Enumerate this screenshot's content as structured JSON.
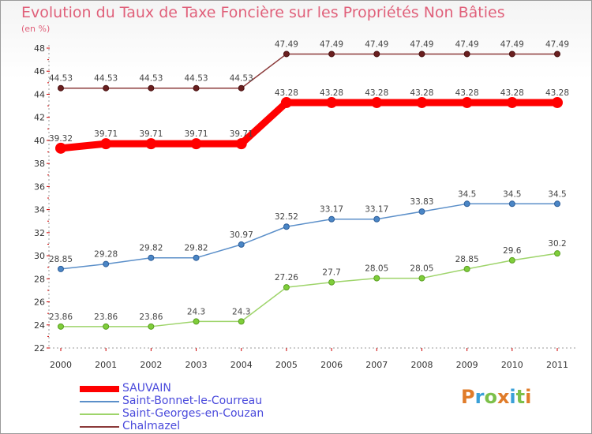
{
  "chart_data": {
    "type": "line",
    "title": "Evolution du Taux de Taxe Foncière sur les Propriétés Non Bâties",
    "subtitle": "(en %)",
    "categories": [
      "2000",
      "2001",
      "2002",
      "2003",
      "2004",
      "2005",
      "2006",
      "2007",
      "2008",
      "2009",
      "2010",
      "2011"
    ],
    "ylim": [
      22,
      48
    ],
    "yticks": [
      22,
      24,
      26,
      28,
      30,
      32,
      34,
      36,
      38,
      40,
      42,
      44,
      46,
      48
    ],
    "grid": false,
    "legend_position": "bottom-left",
    "series": [
      {
        "name": "SAUVAIN",
        "color": "#ff0000",
        "values": [
          39.32,
          39.71,
          39.71,
          39.71,
          39.71,
          43.28,
          43.28,
          43.28,
          43.28,
          43.28,
          43.28,
          43.28
        ],
        "labels": [
          "39.32",
          "39.71",
          "39.71",
          "39.71",
          "39.71",
          "43.28",
          "43.28",
          "43.28",
          "43.28",
          "43.28",
          "43.28",
          "43.28"
        ]
      },
      {
        "name": "Saint-Bonnet-le-Courreau",
        "color": "#5b8fc9",
        "values": [
          28.85,
          29.28,
          29.82,
          29.82,
          30.97,
          32.52,
          33.17,
          33.17,
          33.83,
          34.5,
          34.5,
          34.5
        ],
        "labels": [
          "28.85",
          "29.28",
          "29.82",
          "29.82",
          "30.97",
          "32.52",
          "33.17",
          "33.17",
          "33.83",
          "34.5",
          "34.5",
          "34.5"
        ]
      },
      {
        "name": "Saint-Georges-en-Couzan",
        "color": "#9ed46a",
        "values": [
          23.86,
          23.86,
          23.86,
          24.3,
          24.3,
          27.26,
          27.7,
          28.05,
          28.05,
          28.85,
          29.6,
          30.2
        ],
        "labels": [
          "23.86",
          "23.86",
          "23.86",
          "24.3",
          "24.3",
          "27.26",
          "27.7",
          "28.05",
          "28.05",
          "28.85",
          "29.6",
          "30.2"
        ]
      },
      {
        "name": "Chalmazel",
        "color": "#8b3a3a",
        "values": [
          44.53,
          44.53,
          44.53,
          44.53,
          44.53,
          47.49,
          47.49,
          47.49,
          47.49,
          47.49,
          47.49,
          47.49
        ],
        "labels": [
          "44.53",
          "44.53",
          "44.53",
          "44.53",
          "44.53",
          "47.49",
          "47.49",
          "47.49",
          "47.49",
          "47.49",
          "47.49",
          "47.49"
        ]
      }
    ]
  },
  "legend": [
    {
      "label": "SAUVAIN",
      "color": "#ff0000",
      "thickness": 8
    },
    {
      "label": "Saint-Bonnet-le-Courreau",
      "color": "#5b8fc9",
      "thickness": 2
    },
    {
      "label": "Saint-Georges-en-Couzan",
      "color": "#9ed46a",
      "thickness": 2
    },
    {
      "label": "Chalmazel",
      "color": "#8b3a3a",
      "thickness": 2
    }
  ],
  "logo": {
    "text": "Proxiti",
    "colors": [
      "#e07c2a",
      "#3aa0d8",
      "#7cc04a",
      "#e07c2a",
      "#3aa0d8",
      "#7cc04a",
      "#e07c2a"
    ]
  }
}
